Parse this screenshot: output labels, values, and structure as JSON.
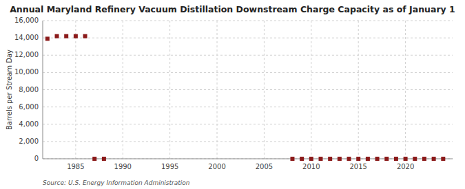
{
  "chart_data": {
    "type": "line",
    "title": "Annual Maryland Refinery Vacuum Distillation Downstream Charge Capacity as of January 1",
    "y_label": "Barrels per Stream Day",
    "source": "Source: U.S. Energy Information Administration",
    "x": [
      1982,
      1983,
      1984,
      1985,
      1986,
      1987,
      1988,
      2008,
      2009,
      2010,
      2011,
      2012,
      2013,
      2014,
      2015,
      2016,
      2017,
      2018,
      2019,
      2020,
      2021,
      2022,
      2023,
      2024
    ],
    "values": [
      13900,
      14200,
      14200,
      14200,
      14200,
      0,
      0,
      0,
      0,
      0,
      0,
      0,
      0,
      0,
      0,
      0,
      0,
      0,
      0,
      0,
      0,
      0,
      0,
      0
    ],
    "color": "#8b1a1a",
    "marker": "square",
    "line_style": "none",
    "xlim": [
      1981.5,
      2025
    ],
    "xticks": [
      1985,
      1990,
      1995,
      2000,
      2005,
      2010,
      2015,
      2020
    ],
    "ylim": [
      0,
      16000
    ],
    "yticks": [
      0,
      {
        "value": 2000,
        "label": "2,000"
      },
      {
        "value": 4000,
        "label": "4,000"
      },
      {
        "value": 6000,
        "label": "6,000"
      },
      {
        "value": 8000,
        "label": "8,000"
      },
      {
        "value": 10000,
        "label": "10,000"
      },
      {
        "value": 12000,
        "label": "12,000"
      },
      {
        "value": 14000,
        "label": "14,000"
      },
      {
        "value": 16000,
        "label": "16,000"
      }
    ],
    "grid": true
  }
}
